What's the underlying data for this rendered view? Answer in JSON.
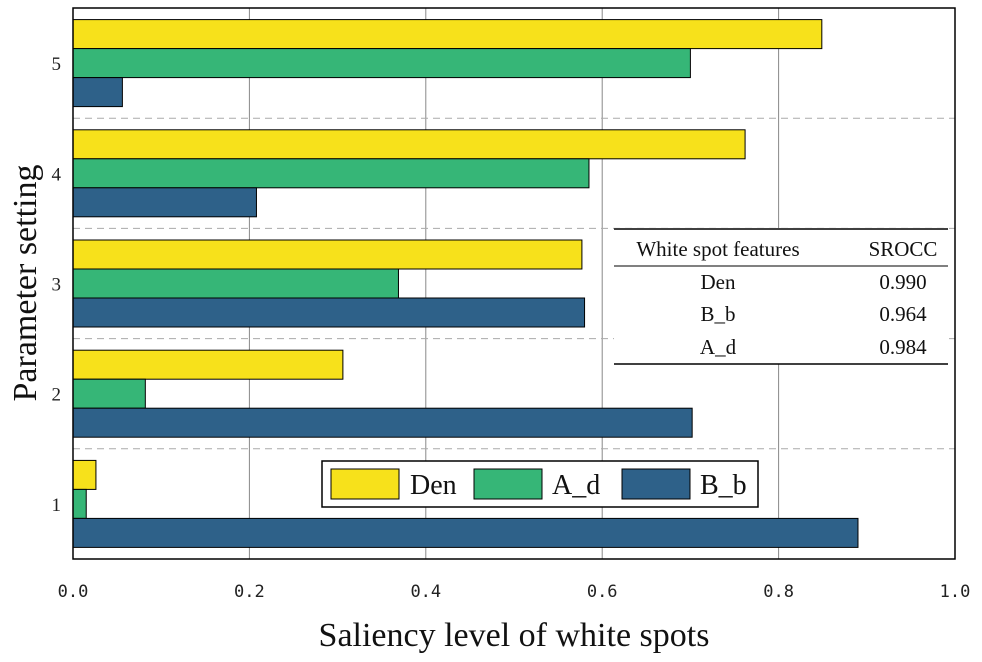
{
  "chart_data": {
    "type": "bar",
    "orientation": "horizontal",
    "categories": [
      "1",
      "2",
      "3",
      "4",
      "5"
    ],
    "series": [
      {
        "name": "Den",
        "color": "#f7e11b",
        "values": [
          0.026,
          0.306,
          0.577,
          0.762,
          0.849
        ]
      },
      {
        "name": "A_d",
        "color": "#36b677",
        "values": [
          0.015,
          0.082,
          0.369,
          0.585,
          0.7
        ]
      },
      {
        "name": "B_b",
        "color": "#2e6189",
        "values": [
          0.89,
          0.702,
          0.58,
          0.208,
          0.056
        ]
      }
    ],
    "xlabel": "Saliency level of white spots",
    "ylabel": "Parameter setting",
    "xlim": [
      0.0,
      1.0
    ],
    "xticks": [
      "0.0",
      "0.2",
      "0.4",
      "0.6",
      "0.8",
      "1.0"
    ],
    "grid": "vertical solid, horizontal dashed between groups",
    "legend": {
      "placement": "lower-center",
      "entries": [
        "Den",
        "A_d",
        "B_b"
      ]
    },
    "inset_table": {
      "placement": "center-right",
      "headers": [
        "White spot features",
        "SROCC"
      ],
      "rows": [
        [
          "Den",
          "0.990"
        ],
        [
          "B_b",
          "0.964"
        ],
        [
          "A_d",
          "0.984"
        ]
      ]
    }
  }
}
